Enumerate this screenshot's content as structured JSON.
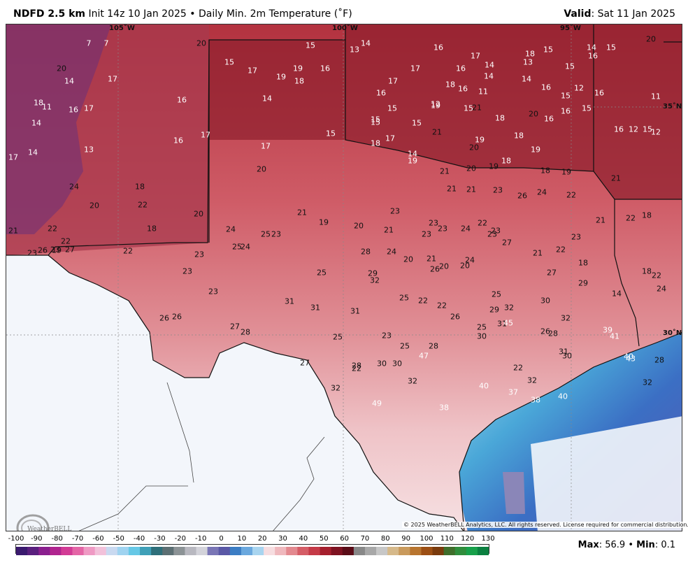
{
  "header": {
    "product": "NDFD 2.5 km",
    "init": "Init 14z 10 Jan 2025 • Daily Min. 2m Temperature (˚F)",
    "valid_label": "Valid",
    "valid_value": ": Sat 11 Jan 2025"
  },
  "graticule": {
    "lon_105": "105˚W",
    "lon_100": "100˚W",
    "lon_95": "95˚W",
    "lat_35": "35˚N",
    "lat_30": "30˚N"
  },
  "copyright": "© 2025 WeatherBELL Analytics, LLC. All rights reserved. License required for commercial distribution.",
  "logo_text": "WeatherBELL",
  "colorbar": {
    "ticks": [
      "-100",
      "-90",
      "-80",
      "-70",
      "-60",
      "-50",
      "-40",
      "-30",
      "-20",
      "-10",
      "0",
      "10",
      "20",
      "30",
      "40",
      "50",
      "60",
      "70",
      "80",
      "90",
      "100",
      "110",
      "120",
      "130"
    ],
    "colors": [
      "#3a1a6e",
      "#5a1f7e",
      "#8a1f8e",
      "#b0248f",
      "#d23b95",
      "#e465a6",
      "#ef9ac4",
      "#f2c1da",
      "#c9d9f0",
      "#9fd3f0",
      "#66c8e6",
      "#3fa0b8",
      "#2e6f7a",
      "#5c6f73",
      "#8c9396",
      "#b8b8c0",
      "#d3d3da",
      "#7a76b6",
      "#5a58a6",
      "#3c7dc4",
      "#6aa8de",
      "#a8d4ef",
      "#f6dde0",
      "#efb8bd",
      "#e3898f",
      "#d55d66",
      "#c53a47",
      "#a51f2d",
      "#7e1221",
      "#5a0c17",
      "#888888",
      "#a8a8a8",
      "#c7c7c7",
      "#d6b98a",
      "#c99a5c",
      "#b8752f",
      "#9c4f14",
      "#7a3b0d",
      "#3f6e2b",
      "#2f8d3c",
      "#17a04a",
      "#0b8040"
    ]
  },
  "stats": {
    "max_label": "Max",
    "max_value": ": 56.9",
    "sep": " • ",
    "min_label": "Min",
    "min_value": ": 0.1"
  },
  "temperatures": [
    {
      "t": "7"
    },
    {
      "t": "7"
    },
    {
      "t": "20"
    },
    {
      "t": "15"
    },
    {
      "t": "13"
    },
    {
      "t": "14"
    },
    {
      "t": "16"
    },
    {
      "t": "17"
    },
    {
      "t": "18"
    },
    {
      "t": "15"
    },
    {
      "t": "16"
    },
    {
      "t": "15"
    },
    {
      "t": "20"
    },
    {
      "t": "20"
    },
    {
      "t": "14"
    },
    {
      "t": "17"
    },
    {
      "t": "15"
    },
    {
      "t": "17"
    },
    {
      "t": "19"
    },
    {
      "t": "19"
    },
    {
      "t": "18"
    },
    {
      "t": "16"
    },
    {
      "t": "17"
    },
    {
      "t": "16"
    },
    {
      "t": "14"
    },
    {
      "t": "14"
    },
    {
      "t": "13"
    },
    {
      "t": "14"
    },
    {
      "t": "15"
    },
    {
      "t": "14"
    },
    {
      "t": "18"
    },
    {
      "t": "11"
    },
    {
      "t": "16"
    },
    {
      "t": "17"
    },
    {
      "t": "16"
    },
    {
      "t": "14"
    },
    {
      "t": "16"
    },
    {
      "t": "15"
    },
    {
      "t": "16"
    },
    {
      "t": "17"
    },
    {
      "t": "18"
    },
    {
      "t": "11"
    },
    {
      "t": "16"
    },
    {
      "t": "15"
    },
    {
      "t": "12"
    },
    {
      "t": "16"
    },
    {
      "t": "11"
    },
    {
      "t": "14"
    },
    {
      "t": "15"
    },
    {
      "t": "15"
    },
    {
      "t": "12"
    },
    {
      "t": "19"
    },
    {
      "t": "15"
    },
    {
      "t": "21"
    },
    {
      "t": "18"
    },
    {
      "t": "20"
    },
    {
      "t": "15"
    },
    {
      "t": "16"
    },
    {
      "t": "12"
    },
    {
      "t": "12"
    },
    {
      "t": "14"
    },
    {
      "t": "13"
    },
    {
      "t": "16"
    },
    {
      "t": "17"
    },
    {
      "t": "15"
    },
    {
      "t": "17"
    },
    {
      "t": "18"
    },
    {
      "t": "15"
    },
    {
      "t": "21"
    },
    {
      "t": "19"
    },
    {
      "t": "20"
    },
    {
      "t": "18"
    },
    {
      "t": "16"
    },
    {
      "t": "16"
    },
    {
      "t": "15"
    },
    {
      "t": "17"
    },
    {
      "t": "17"
    },
    {
      "t": "20"
    },
    {
      "t": "14"
    },
    {
      "t": "19"
    },
    {
      "t": "21"
    },
    {
      "t": "20"
    },
    {
      "t": "19"
    },
    {
      "t": "18"
    },
    {
      "t": "19"
    },
    {
      "t": "18"
    },
    {
      "t": "19"
    },
    {
      "t": "21"
    },
    {
      "t": "24"
    },
    {
      "t": "18"
    },
    {
      "t": "21"
    },
    {
      "t": "21"
    },
    {
      "t": "23"
    },
    {
      "t": "26"
    },
    {
      "t": "24"
    },
    {
      "t": "22"
    },
    {
      "t": "18"
    },
    {
      "t": "20"
    },
    {
      "t": "22"
    },
    {
      "t": "20"
    },
    {
      "t": "21"
    },
    {
      "t": "22"
    },
    {
      "t": "22"
    },
    {
      "t": "26"
    },
    {
      "t": "19"
    },
    {
      "t": "22"
    },
    {
      "t": "18"
    },
    {
      "t": "23"
    },
    {
      "t": "24"
    },
    {
      "t": "25"
    },
    {
      "t": "24"
    },
    {
      "t": "23"
    },
    {
      "t": "21"
    },
    {
      "t": "19"
    },
    {
      "t": "20"
    },
    {
      "t": "21"
    },
    {
      "t": "23"
    },
    {
      "t": "23"
    },
    {
      "t": "23"
    },
    {
      "t": "23"
    },
    {
      "t": "24"
    },
    {
      "t": "22"
    },
    {
      "t": "23"
    },
    {
      "t": "27"
    },
    {
      "t": "21"
    },
    {
      "t": "22"
    },
    {
      "t": "23"
    },
    {
      "t": "18"
    },
    {
      "t": "21"
    },
    {
      "t": "22"
    },
    {
      "t": "23"
    },
    {
      "t": "23"
    },
    {
      "t": "27"
    },
    {
      "t": "23"
    },
    {
      "t": "23"
    },
    {
      "t": "25"
    },
    {
      "t": "25"
    },
    {
      "t": "28"
    },
    {
      "t": "29"
    },
    {
      "t": "24"
    },
    {
      "t": "20"
    },
    {
      "t": "21"
    },
    {
      "t": "20"
    },
    {
      "t": "20"
    },
    {
      "t": "24"
    },
    {
      "t": "23"
    },
    {
      "t": "25"
    },
    {
      "t": "26"
    },
    {
      "t": "27"
    },
    {
      "t": "29"
    },
    {
      "t": "14"
    },
    {
      "t": "18"
    },
    {
      "t": "22"
    },
    {
      "t": "24"
    },
    {
      "t": "26"
    },
    {
      "t": "26"
    },
    {
      "t": "27"
    },
    {
      "t": "28"
    },
    {
      "t": "31"
    },
    {
      "t": "31"
    },
    {
      "t": "31"
    },
    {
      "t": "32"
    },
    {
      "t": "25"
    },
    {
      "t": "22"
    },
    {
      "t": "22"
    },
    {
      "t": "26"
    },
    {
      "t": "25"
    },
    {
      "t": "29"
    },
    {
      "t": "32"
    },
    {
      "t": "30"
    },
    {
      "t": "32"
    },
    {
      "t": "39"
    },
    {
      "t": "41"
    },
    {
      "t": "25"
    },
    {
      "t": "22"
    },
    {
      "t": "23"
    },
    {
      "t": "25"
    },
    {
      "t": "28"
    },
    {
      "t": "30"
    },
    {
      "t": "31"
    },
    {
      "t": "45"
    },
    {
      "t": "26"
    },
    {
      "t": "28"
    },
    {
      "t": "31"
    },
    {
      "t": "30"
    },
    {
      "t": "40"
    },
    {
      "t": "43"
    },
    {
      "t": "28"
    },
    {
      "t": "27"
    },
    {
      "t": "28"
    },
    {
      "t": "30"
    },
    {
      "t": "30"
    },
    {
      "t": "32"
    },
    {
      "t": "47"
    },
    {
      "t": "22"
    },
    {
      "t": "32"
    },
    {
      "t": "32"
    },
    {
      "t": "32"
    },
    {
      "t": "49"
    },
    {
      "t": "38"
    },
    {
      "t": "40"
    },
    {
      "t": "37"
    },
    {
      "t": "38"
    },
    {
      "t": "40"
    }
  ]
}
